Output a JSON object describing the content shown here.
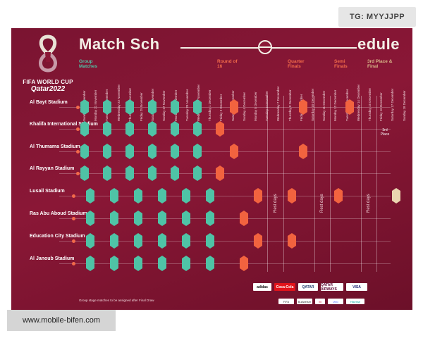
{
  "tag": "TG: MYYJJPP",
  "watermark": "www.mobile-bifen.com",
  "logo": {
    "line1": "FIFA WORLD CUP",
    "line2": "Qatar2022"
  },
  "title": {
    "part1": "Match Sch",
    "part2": "edule"
  },
  "stages": {
    "group": "Group Matches",
    "r16": "Round of 16",
    "qf": "Quarter Finals",
    "sf": "Semi Finals",
    "final": "3rd Place & Final"
  },
  "dates": [
    "Sunday 20 November",
    "Monday 21 November",
    "Tuesday 22 November",
    "Wednesday 23 November",
    "Thursday 24 November",
    "Friday 25 November",
    "Saturday 26 November",
    "Sunday 27 November",
    "Monday 28 November",
    "Tuesday 29 November",
    "Wednesday 30 November",
    "Thursday 1 December",
    "Friday 2 December",
    "Saturday 3 December",
    "Sunday 4 December",
    "Monday 5 December",
    "Tuesday 6 December",
    "Wednesday 7 December",
    "Thursday 8 December",
    "Friday 9 December",
    "Saturday 10 December",
    "Sunday 11 December",
    "Monday 12 December",
    "Tuesday 13 December",
    "Wednesday 14 December",
    "Thursday 15 December",
    "Friday 16 December",
    "Saturday 17 December",
    "Sunday 18 December"
  ],
  "stadiums": [
    "Al Bayt Stadium",
    "Khalifa International Stadium",
    "Al Thumama Stadium",
    "Al Rayyan Stadium",
    "Lusail Stadium",
    "Ras Abu Aboud Stadium",
    "Education City Stadium",
    "Al Janoub Stadium"
  ],
  "rest_label": "Rest days",
  "third_place": "3rd Place",
  "final_label": "Final",
  "footnote": "Group stage matches to be assigned after Final Draw",
  "sponsors": [
    "adidas",
    "Coca-Cola",
    "QATAR",
    "QATAR AIRWAYS",
    "VISA"
  ],
  "sponsors2": [
    "FIFA",
    "Budweiser",
    "M",
    "vivo",
    "Hisense"
  ]
}
